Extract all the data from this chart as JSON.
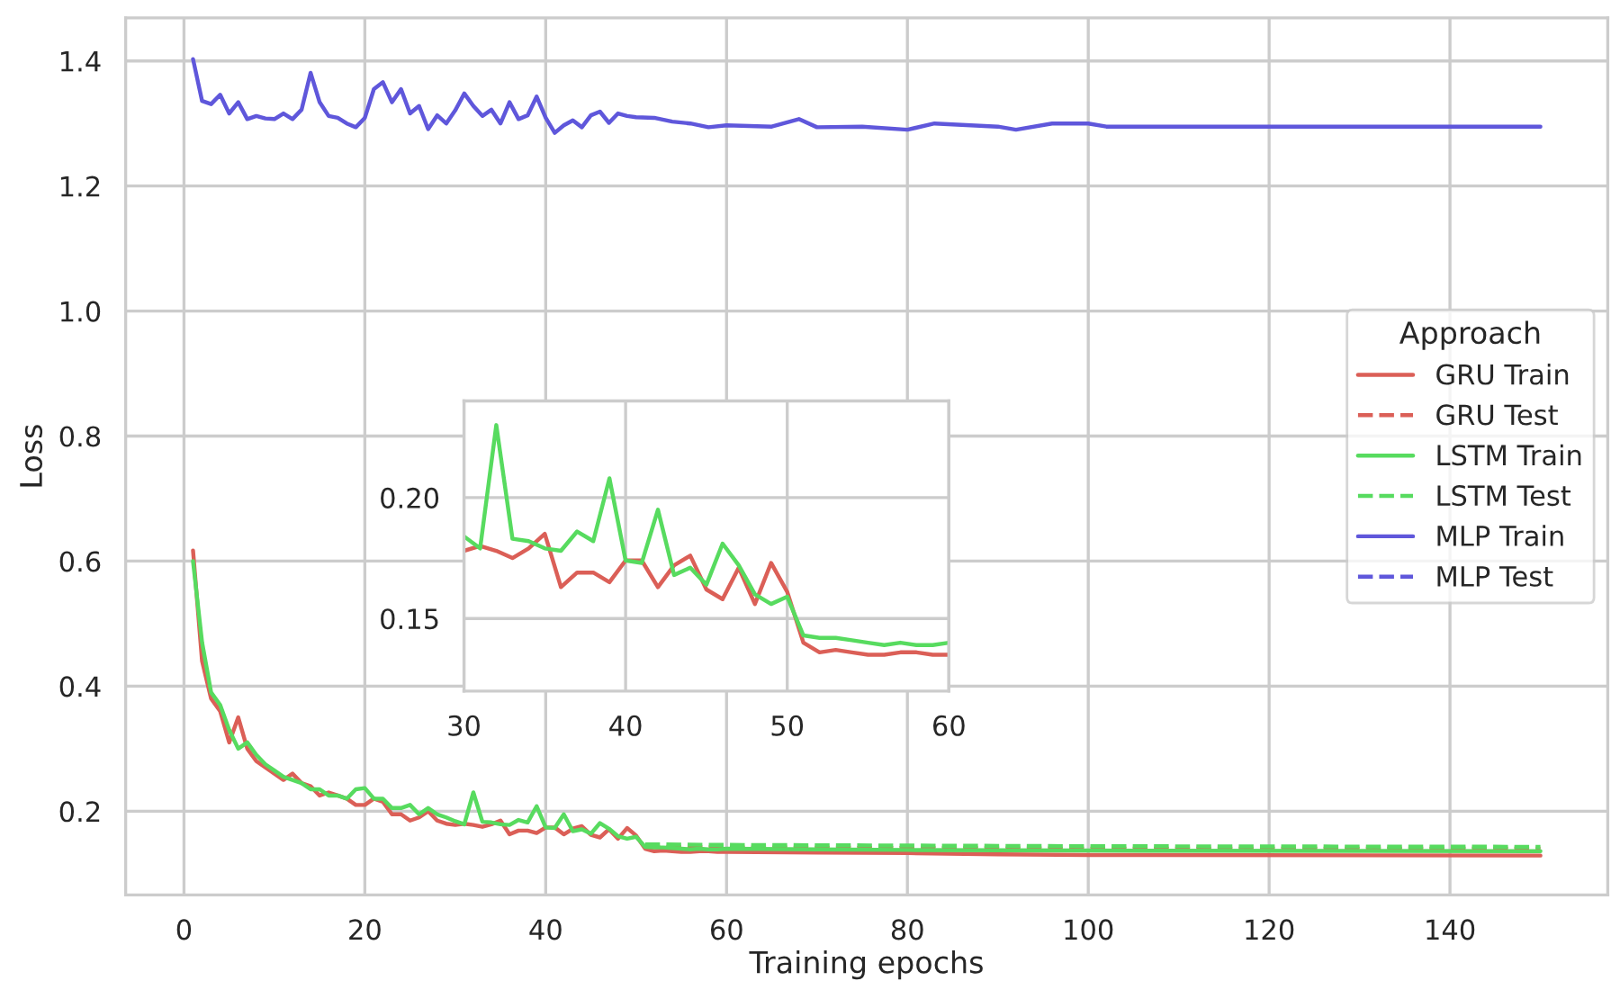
{
  "chart_data": [
    {
      "type": "line",
      "xlabel": "Training epochs",
      "ylabel": "Loss",
      "xlim": [
        -6.45,
        157.45
      ],
      "ylim": [
        0.066,
        1.469
      ],
      "xticks": [
        0,
        20,
        40,
        60,
        80,
        100,
        120,
        140
      ],
      "yticks": [
        0.2,
        0.4,
        0.6,
        0.8,
        {
          "value": 1.0,
          "label": "1.0"
        },
        1.2,
        1.4
      ],
      "grid": true,
      "legend": "right",
      "legend_title": "Approach",
      "series": [
        {
          "name": "GRU Train",
          "color": "#db5f57",
          "line_style": "solid",
          "x": [
            1,
            2,
            3,
            4,
            5,
            6,
            7,
            8,
            9,
            10,
            11,
            12,
            13,
            14,
            15,
            16,
            17,
            18,
            19,
            20,
            21,
            22,
            23,
            24,
            25,
            26,
            27,
            28,
            29,
            30,
            31,
            32,
            33,
            34,
            35,
            36,
            37,
            38,
            39,
            40,
            41,
            42,
            43,
            44,
            45,
            46,
            47,
            48,
            49,
            50,
            51,
            52,
            53,
            54,
            55,
            56,
            57,
            58,
            59,
            60,
            70,
            80,
            90,
            100,
            150
          ],
          "values": [
            0.617,
            0.44,
            0.38,
            0.36,
            0.31,
            0.35,
            0.3,
            0.28,
            0.27,
            0.26,
            0.25,
            0.26,
            0.245,
            0.24,
            0.225,
            0.23,
            0.225,
            0.22,
            0.21,
            0.21,
            0.22,
            0.215,
            0.195,
            0.195,
            0.185,
            0.19,
            0.2,
            0.185,
            0.18,
            0.178,
            0.18,
            0.178,
            0.175,
            0.179,
            0.185,
            0.163,
            0.169,
            0.169,
            0.165,
            0.174,
            0.174,
            0.163,
            0.172,
            0.176,
            0.162,
            0.158,
            0.171,
            0.156,
            0.173,
            0.161,
            0.14,
            0.136,
            0.137,
            0.136,
            0.135,
            0.135,
            0.136,
            0.136,
            0.135,
            0.135,
            0.134,
            0.133,
            0.131,
            0.13,
            0.129
          ]
        },
        {
          "name": "GRU Test",
          "color": "#db5f57",
          "line_style": "dashed",
          "x": [
            51,
            60,
            80,
            100,
            150
          ],
          "values": [
            0.143,
            0.142,
            0.141,
            0.14,
            0.14
          ]
        },
        {
          "name": "LSTM Train",
          "color": "#57db5f",
          "line_style": "solid",
          "x": [
            1,
            2,
            3,
            4,
            5,
            6,
            7,
            8,
            9,
            10,
            11,
            12,
            13,
            14,
            15,
            16,
            17,
            18,
            19,
            20,
            21,
            22,
            23,
            24,
            25,
            26,
            27,
            28,
            29,
            30,
            31,
            32,
            33,
            34,
            35,
            36,
            37,
            38,
            39,
            40,
            41,
            42,
            43,
            44,
            45,
            46,
            47,
            48,
            49,
            50,
            51,
            52,
            53,
            54,
            55,
            56,
            57,
            58,
            59,
            60,
            70,
            80,
            100,
            150
          ],
          "values": [
            0.6,
            0.47,
            0.39,
            0.37,
            0.33,
            0.3,
            0.31,
            0.29,
            0.275,
            0.265,
            0.255,
            0.25,
            0.245,
            0.235,
            0.235,
            0.225,
            0.225,
            0.22,
            0.235,
            0.237,
            0.22,
            0.22,
            0.205,
            0.205,
            0.21,
            0.195,
            0.205,
            0.195,
            0.19,
            0.184,
            0.179,
            0.23,
            0.183,
            0.182,
            0.179,
            0.178,
            0.186,
            0.182,
            0.208,
            0.174,
            0.173,
            0.195,
            0.168,
            0.171,
            0.164,
            0.181,
            0.172,
            0.16,
            0.156,
            0.159,
            0.143,
            0.142,
            0.142,
            0.141,
            0.14,
            0.139,
            0.14,
            0.139,
            0.139,
            0.14,
            0.139,
            0.138,
            0.137,
            0.136
          ]
        },
        {
          "name": "LSTM Test",
          "color": "#57db5f",
          "line_style": "dashed",
          "x": [
            51,
            60,
            80,
            100,
            150
          ],
          "values": [
            0.147,
            0.146,
            0.145,
            0.144,
            0.143
          ]
        },
        {
          "name": "MLP Train",
          "color": "#5f57db",
          "line_style": "solid",
          "x": [
            1,
            2,
            3,
            4,
            5,
            6,
            7,
            8,
            9,
            10,
            11,
            12,
            13,
            14,
            15,
            16,
            17,
            18,
            19,
            20,
            21,
            22,
            23,
            24,
            25,
            26,
            27,
            28,
            29,
            30,
            31,
            32,
            33,
            34,
            35,
            36,
            37,
            38,
            39,
            40,
            41,
            42,
            43,
            44,
            45,
            46,
            47,
            48,
            49,
            50,
            52,
            54,
            56,
            58,
            60,
            65,
            68,
            70,
            75,
            80,
            83,
            90,
            92,
            96,
            100,
            102,
            150
          ],
          "values": [
            1.403,
            1.336,
            1.331,
            1.346,
            1.316,
            1.334,
            1.307,
            1.312,
            1.308,
            1.307,
            1.316,
            1.307,
            1.322,
            1.381,
            1.334,
            1.312,
            1.309,
            1.3,
            1.294,
            1.309,
            1.355,
            1.366,
            1.334,
            1.355,
            1.316,
            1.328,
            1.291,
            1.313,
            1.3,
            1.321,
            1.348,
            1.328,
            1.312,
            1.322,
            1.3,
            1.334,
            1.307,
            1.313,
            1.343,
            1.309,
            1.285,
            1.297,
            1.305,
            1.294,
            1.313,
            1.319,
            1.301,
            1.316,
            1.312,
            1.31,
            1.309,
            1.303,
            1.3,
            1.294,
            1.297,
            1.295,
            1.307,
            1.294,
            1.295,
            1.29,
            1.3,
            1.295,
            1.29,
            1.3,
            1.3,
            1.295,
            1.295
          ]
        },
        {
          "name": "MLP Test",
          "color": "#5f57db",
          "line_style": "dashed"
        }
      ]
    },
    {
      "type": "line",
      "xlim": [
        30,
        60
      ],
      "ylim": [
        0.12,
        0.24
      ],
      "xticks": [
        30,
        40,
        50,
        60
      ],
      "yticks": [
        0.15,
        {
          "value": 0.2,
          "label": "0.20"
        }
      ],
      "grid": true,
      "series": [
        {
          "color": "#db5f57",
          "line_style": "solid",
          "x": [
            30,
            31,
            32,
            33,
            34,
            35,
            36,
            37,
            38,
            39,
            40,
            41,
            42,
            43,
            44,
            45,
            46,
            47,
            48,
            49,
            50,
            51,
            52,
            53,
            54,
            55,
            56,
            57,
            58,
            59,
            60
          ],
          "values": [
            0.178,
            0.18,
            0.178,
            0.175,
            0.179,
            0.185,
            0.163,
            0.169,
            0.169,
            0.165,
            0.174,
            0.174,
            0.163,
            0.172,
            0.176,
            0.162,
            0.158,
            0.171,
            0.156,
            0.173,
            0.161,
            0.14,
            0.136,
            0.137,
            0.136,
            0.135,
            0.135,
            0.136,
            0.136,
            0.135,
            0.135
          ]
        },
        {
          "color": "#57db5f",
          "line_style": "solid",
          "x": [
            30,
            31,
            32,
            33,
            34,
            35,
            36,
            37,
            38,
            39,
            40,
            41,
            42,
            43,
            44,
            45,
            46,
            47,
            48,
            49,
            50,
            51,
            52,
            53,
            54,
            55,
            56,
            57,
            58,
            59,
            60
          ],
          "values": [
            0.184,
            0.179,
            0.23,
            0.183,
            0.182,
            0.179,
            0.178,
            0.186,
            0.182,
            0.208,
            0.174,
            0.173,
            0.195,
            0.168,
            0.171,
            0.164,
            0.181,
            0.172,
            0.16,
            0.156,
            0.159,
            0.143,
            0.142,
            0.142,
            0.141,
            0.14,
            0.139,
            0.14,
            0.139,
            0.139,
            0.14
          ]
        }
      ]
    }
  ]
}
